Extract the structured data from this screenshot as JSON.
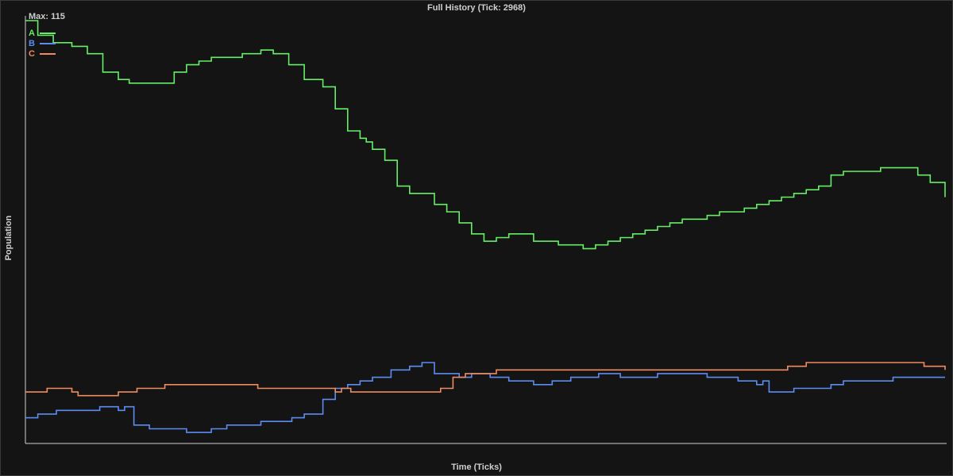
{
  "chart_data": {
    "type": "line",
    "title": "Full History (Tick: 2968)",
    "xlabel": "Time (Ticks)",
    "ylabel": "Population",
    "max_label": "Max: 115",
    "xlim": [
      0,
      2968
    ],
    "ylim": [
      0,
      115
    ],
    "grid": false,
    "legend_position": "top-left",
    "series": [
      {
        "name": "A",
        "color": "#66ee66",
        "x": [
          0,
          40,
          90,
          150,
          200,
          250,
          300,
          335,
          400,
          480,
          520,
          560,
          600,
          650,
          700,
          760,
          800,
          850,
          900,
          960,
          1000,
          1040,
          1080,
          1100,
          1120,
          1160,
          1200,
          1240,
          1280,
          1320,
          1360,
          1400,
          1440,
          1480,
          1520,
          1560,
          1600,
          1640,
          1680,
          1720,
          1760,
          1800,
          1840,
          1880,
          1920,
          1960,
          2000,
          2040,
          2080,
          2120,
          2160,
          2200,
          2240,
          2280,
          2320,
          2360,
          2400,
          2440,
          2480,
          2520,
          2560,
          2600,
          2640,
          2680,
          2720,
          2760,
          2800,
          2840,
          2880,
          2920,
          2968
        ],
        "y": [
          115,
          111,
          109,
          108,
          106,
          101,
          99,
          98,
          98,
          101,
          103,
          104,
          105,
          105,
          106,
          107,
          106,
          103,
          99,
          97,
          91,
          85,
          83,
          82,
          80,
          77,
          70,
          68,
          68,
          65,
          63,
          60,
          57,
          55,
          56,
          57,
          57,
          55,
          55,
          54,
          54,
          53,
          54,
          55,
          56,
          57,
          58,
          59,
          60,
          61,
          61,
          62,
          63,
          63,
          64,
          65,
          66,
          67,
          68,
          69,
          70,
          73,
          74,
          74,
          74,
          75,
          75,
          75,
          73,
          71,
          67
        ]
      },
      {
        "name": "B",
        "color": "#5c8cf0",
        "x": [
          0,
          40,
          100,
          200,
          240,
          300,
          320,
          350,
          400,
          480,
          520,
          550,
          600,
          650,
          700,
          760,
          820,
          860,
          900,
          960,
          1000,
          1040,
          1080,
          1120,
          1180,
          1240,
          1280,
          1320,
          1360,
          1400,
          1440,
          1500,
          1560,
          1600,
          1640,
          1700,
          1760,
          1800,
          1850,
          1880,
          1920,
          2000,
          2040,
          2100,
          2200,
          2300,
          2360,
          2380,
          2400,
          2440,
          2480,
          2520,
          2560,
          2600,
          2640,
          2700,
          2760,
          2800,
          2850,
          2900,
          2940,
          2968
        ],
        "y": [
          7,
          8,
          9,
          9,
          10,
          9,
          10,
          5,
          4,
          4,
          3,
          3,
          4,
          5,
          5,
          6,
          6,
          7,
          8,
          12,
          15,
          16,
          17,
          18,
          20,
          21,
          22,
          19,
          19,
          18,
          19,
          18,
          17,
          17,
          16,
          17,
          18,
          18,
          19,
          19,
          18,
          18,
          19,
          19,
          18,
          17,
          16,
          17,
          14,
          14,
          15,
          15,
          15,
          16,
          17,
          17,
          17,
          18,
          18,
          18,
          18,
          18
        ]
      },
      {
        "name": "C",
        "color": "#f08a60",
        "x": [
          0,
          70,
          150,
          170,
          240,
          300,
          360,
          450,
          580,
          750,
          1000,
          1020,
          1050,
          1100,
          1200,
          1280,
          1340,
          1380,
          1420,
          1520,
          1580,
          1700,
          1800,
          1900,
          2000,
          2100,
          2200,
          2300,
          2400,
          2460,
          2520,
          2580,
          2640,
          2700,
          2780,
          2840,
          2900,
          2940,
          2968
        ],
        "y": [
          14,
          15,
          14,
          13,
          13,
          14,
          15,
          16,
          16,
          15,
          14,
          15,
          14,
          14,
          14,
          14,
          15,
          18,
          19,
          20,
          20,
          20,
          20,
          20,
          20,
          20,
          20,
          20,
          20,
          21,
          22,
          22,
          22,
          22,
          22,
          22,
          21,
          21,
          20
        ]
      }
    ]
  }
}
